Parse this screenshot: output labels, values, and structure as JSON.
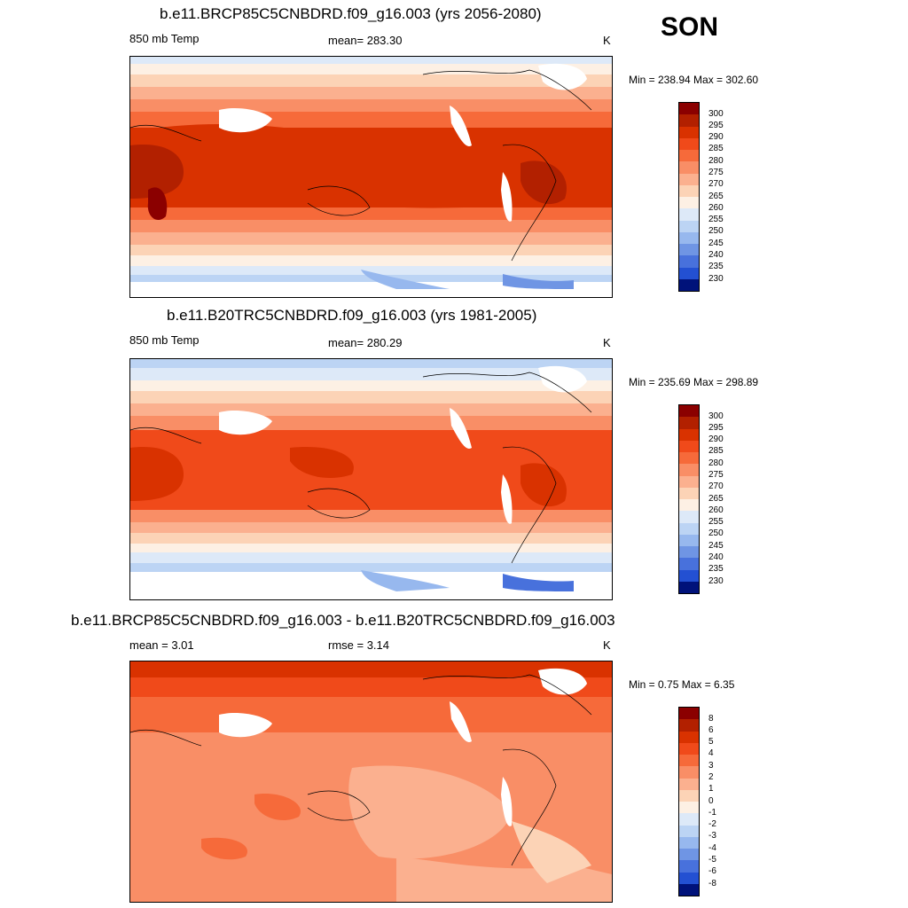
{
  "season": "SON",
  "panels": [
    {
      "title": "b.e11.BRCP85C5CNBDRD.f09_g16.003 (yrs 2056-2080)",
      "left_label": "850 mb Temp",
      "center_label": "mean= 283.30",
      "units": "K",
      "minmax": "Min = 238.94 Max = 302.60",
      "colorbar_labels": [
        "300",
        "295",
        "290",
        "285",
        "280",
        "275",
        "270",
        "265",
        "260",
        "255",
        "250",
        "245",
        "240",
        "235",
        "230"
      ],
      "style": "future"
    },
    {
      "title": "b.e11.B20TRC5CNBDRD.f09_g16.003 (yrs 1981-2005)",
      "left_label": "850 mb Temp",
      "center_label": "mean= 280.29",
      "units": "K",
      "minmax": "Min = 235.69 Max = 298.89",
      "colorbar_labels": [
        "300",
        "295",
        "290",
        "285",
        "280",
        "275",
        "270",
        "265",
        "260",
        "255",
        "250",
        "245",
        "240",
        "235",
        "230"
      ],
      "style": "historical"
    },
    {
      "title": "b.e11.BRCP85C5CNBDRD.f09_g16.003 - b.e11.B20TRC5CNBDRD.f09_g16.003",
      "left_label": "mean =   3.01",
      "center_label": "rmse =   3.14",
      "units": "K",
      "minmax": "Min =   0.75 Max =   6.35",
      "colorbar_labels": [
        "8",
        "6",
        "5",
        "4",
        "3",
        "2",
        "1",
        "0",
        "-1",
        "-2",
        "-3",
        "-4",
        "-5",
        "-6",
        "-8"
      ],
      "style": "difference"
    }
  ],
  "colorbar_colors": [
    "#8b0000",
    "#b22000",
    "#d93200",
    "#f04a1a",
    "#f66a3a",
    "#f98e66",
    "#fbb08f",
    "#fcd3b6",
    "#fdf0e4",
    "#dde9f8",
    "#bcd4f4",
    "#97b8ee",
    "#6f95e4",
    "#4871dc",
    "#2350d2",
    "#0033bb",
    "#001f99",
    "#00127a"
  ]
}
